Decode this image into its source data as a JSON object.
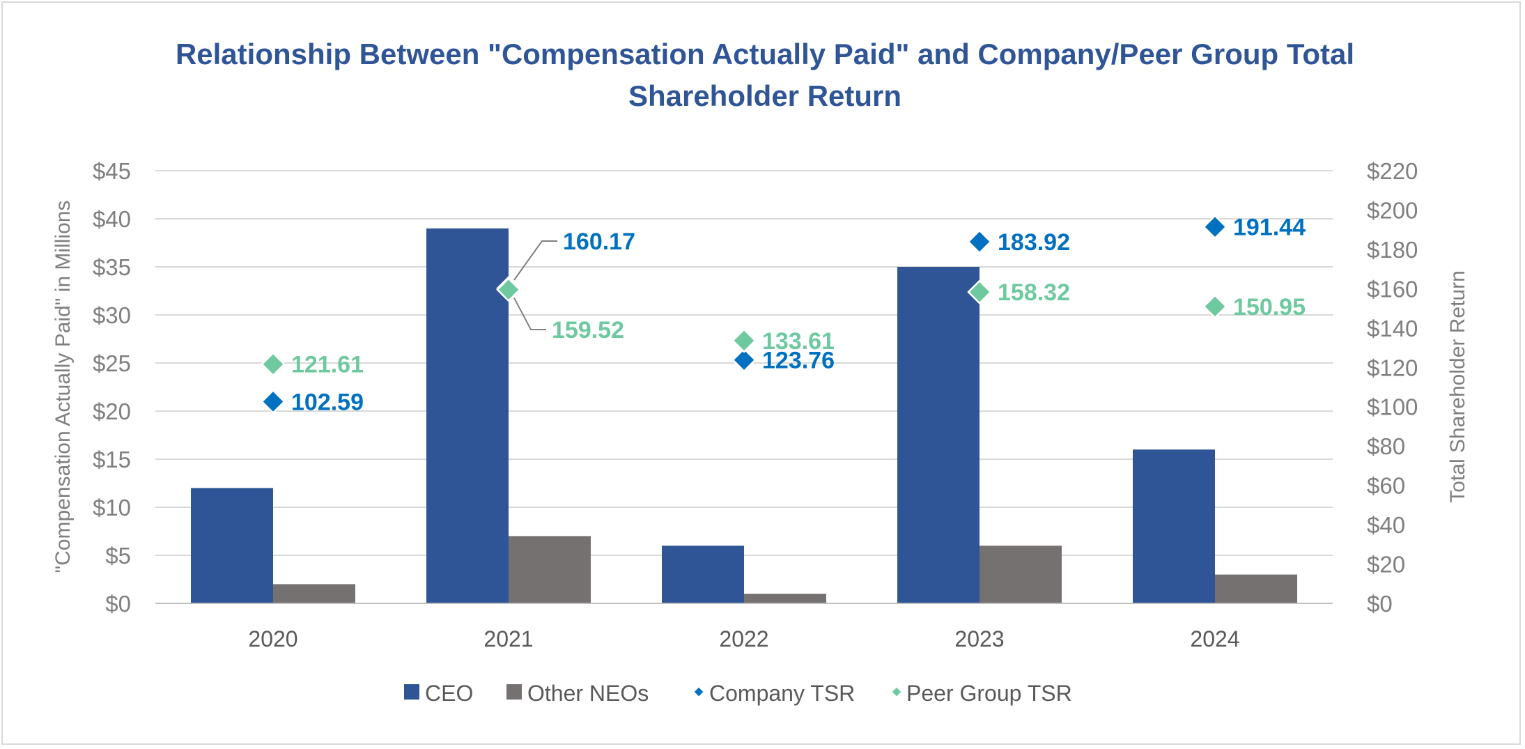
{
  "chart_data": {
    "type": "bar",
    "title": "Relationship Between \"Compensation Actually Paid\" and Company/Peer Group Total Shareholder Return",
    "title_lines": [
      "Relationship Between \"Compensation Actually Paid\" and Company/Peer Group Total",
      "Shareholder Return"
    ],
    "categories": [
      "2020",
      "2021",
      "2022",
      "2023",
      "2024"
    ],
    "y_left": {
      "label": "\"Compensation Actually Paid\" in Millions",
      "ylim": [
        0,
        45
      ],
      "ticks": [
        0,
        5,
        10,
        15,
        20,
        25,
        30,
        35,
        40,
        45
      ],
      "tick_labels": [
        "$0",
        "$5",
        "$10",
        "$15",
        "$20",
        "$25",
        "$30",
        "$35",
        "$40",
        "$45"
      ]
    },
    "y_right": {
      "label": "Total Shareholder Return",
      "ylim": [
        0,
        220
      ],
      "ticks": [
        0,
        20,
        40,
        60,
        80,
        100,
        120,
        140,
        160,
        180,
        200,
        220
      ],
      "tick_labels": [
        "$0",
        "$20",
        "$40",
        "$60",
        "$80",
        "$100",
        "$120",
        "$140",
        "$160",
        "$180",
        "$200",
        "$220"
      ]
    },
    "grid": true,
    "legend_position": "bottom",
    "series": [
      {
        "name": "CEO",
        "kind": "bar",
        "axis": "left",
        "color": "#2f5597",
        "values": [
          12,
          39,
          6,
          35,
          16
        ]
      },
      {
        "name": "Other NEOs",
        "kind": "bar",
        "axis": "left",
        "color": "#767171",
        "values": [
          2,
          7,
          1,
          6,
          3
        ]
      },
      {
        "name": "Company TSR",
        "kind": "marker",
        "marker": "diamond",
        "axis": "right",
        "color": "#0070c0",
        "label_color": "#0070c0",
        "values": [
          102.59,
          160.17,
          123.76,
          183.92,
          191.44
        ],
        "labels": [
          "102.59",
          "160.17",
          "123.76",
          "183.92",
          "191.44"
        ]
      },
      {
        "name": "Peer Group TSR",
        "kind": "marker",
        "marker": "diamond",
        "axis": "right",
        "color": "#6fc9a0",
        "label_color": "#6fc9a0",
        "values": [
          121.61,
          159.52,
          133.61,
          158.32,
          150.95
        ],
        "labels": [
          "121.61",
          "159.52",
          "133.61",
          "158.32",
          "150.95"
        ]
      }
    ]
  }
}
